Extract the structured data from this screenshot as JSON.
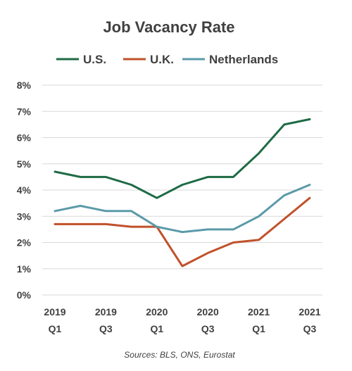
{
  "chart_data": {
    "type": "line",
    "title": "Job Vacancy Rate",
    "x": [
      "2019 Q1",
      "2019 Q2",
      "2019 Q3",
      "2019 Q4",
      "2020 Q1",
      "2020 Q2",
      "2020 Q3",
      "2020 Q4",
      "2021 Q1",
      "2021 Q2",
      "2021 Q3"
    ],
    "x_tick_labels": [
      {
        "year": "2019",
        "quarter": "Q1"
      },
      {
        "year": "2019",
        "quarter": "Q3"
      },
      {
        "year": "2020",
        "quarter": "Q1"
      },
      {
        "year": "2020",
        "quarter": "Q3"
      },
      {
        "year": "2021",
        "quarter": "Q1"
      },
      {
        "year": "2021",
        "quarter": "Q3"
      }
    ],
    "y_tick_labels": [
      "0%",
      "1%",
      "2%",
      "3%",
      "4%",
      "5%",
      "6%",
      "7%",
      "8%"
    ],
    "ylim": [
      0,
      8
    ],
    "grid": true,
    "legend_position": "top",
    "series": [
      {
        "name": "U.S.",
        "color": "#1e6b45",
        "values": [
          4.7,
          4.5,
          4.5,
          4.2,
          3.7,
          4.2,
          4.5,
          4.5,
          5.4,
          6.5,
          6.7
        ]
      },
      {
        "name": "U.K.",
        "color": "#c0512b",
        "values": [
          2.7,
          2.7,
          2.7,
          2.6,
          2.6,
          1.1,
          1.6,
          2.0,
          2.1,
          2.9,
          3.7
        ]
      },
      {
        "name": "Netherlands",
        "color": "#5b9aa9",
        "values": [
          3.2,
          3.4,
          3.2,
          3.2,
          2.6,
          2.4,
          2.5,
          2.5,
          3.0,
          3.8,
          4.2
        ]
      }
    ],
    "source": "Sources: BLS, ONS, Eurostat"
  }
}
